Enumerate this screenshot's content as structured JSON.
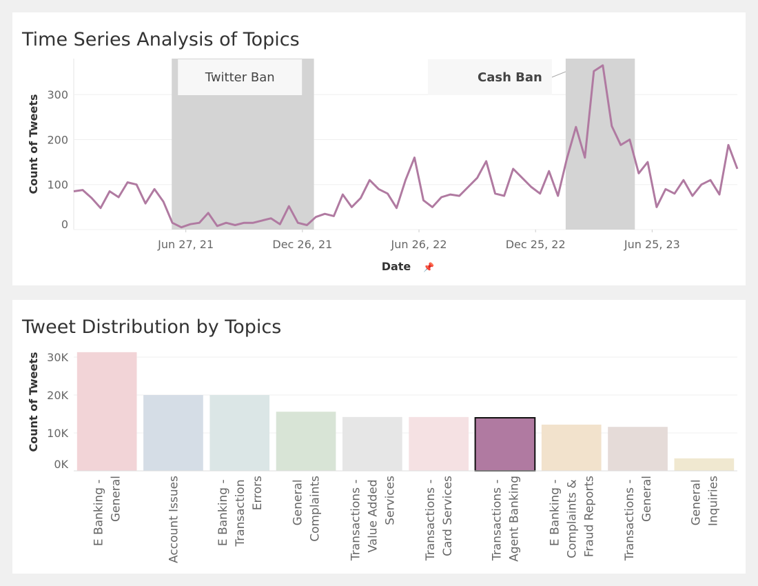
{
  "chart_data": [
    {
      "type": "line",
      "title": "Time Series Analysis of Topics",
      "x_label": "Date",
      "y_label": "Count of Tweets",
      "color": "#b07aa1",
      "grid": true,
      "x": [
        "2021-01-03",
        "2021-01-17",
        "2021-01-31",
        "2021-02-14",
        "2021-02-28",
        "2021-03-14",
        "2021-03-28",
        "2021-04-11",
        "2021-04-25",
        "2021-05-09",
        "2021-05-23",
        "2021-06-06",
        "2021-06-20",
        "2021-07-04",
        "2021-07-18",
        "2021-08-01",
        "2021-08-15",
        "2021-08-29",
        "2021-09-12",
        "2021-09-26",
        "2021-10-10",
        "2021-10-24",
        "2021-11-07",
        "2021-11-21",
        "2021-12-05",
        "2021-12-19",
        "2022-01-02",
        "2022-01-16",
        "2022-01-30",
        "2022-02-13",
        "2022-02-27",
        "2022-03-13",
        "2022-03-27",
        "2022-04-10",
        "2022-04-24",
        "2022-05-08",
        "2022-05-22",
        "2022-06-05",
        "2022-06-19",
        "2022-07-03",
        "2022-07-17",
        "2022-07-31",
        "2022-08-14",
        "2022-08-28",
        "2022-09-11",
        "2022-09-25",
        "2022-10-09",
        "2022-10-23",
        "2022-11-06",
        "2022-11-20",
        "2022-12-04",
        "2022-12-18",
        "2023-01-01",
        "2023-01-15",
        "2023-01-29",
        "2023-02-12",
        "2023-02-26",
        "2023-03-12",
        "2023-03-26",
        "2023-04-09",
        "2023-04-23",
        "2023-05-07",
        "2023-05-21",
        "2023-06-04",
        "2023-06-18",
        "2023-07-02",
        "2023-07-16",
        "2023-07-30",
        "2023-08-13",
        "2023-08-27",
        "2023-09-10",
        "2023-09-24",
        "2023-10-08",
        "2023-10-22",
        "2023-11-05"
      ],
      "values": [
        85,
        88,
        70,
        48,
        85,
        72,
        105,
        100,
        58,
        90,
        62,
        15,
        5,
        12,
        15,
        37,
        8,
        15,
        10,
        15,
        15,
        20,
        25,
        12,
        52,
        15,
        10,
        28,
        35,
        30,
        78,
        50,
        70,
        110,
        90,
        80,
        48,
        110,
        160,
        65,
        50,
        72,
        78,
        75,
        95,
        115,
        152,
        80,
        75,
        135,
        115,
        95,
        80,
        130,
        75,
        158,
        228,
        160,
        352,
        365,
        230,
        188,
        200,
        125,
        150,
        50,
        90,
        80,
        110,
        75,
        100,
        110,
        78,
        188,
        135
      ],
      "xlim": [
        "2021-01-03",
        "2023-11-05"
      ],
      "xticks": [
        {
          "value": "2021-06-27",
          "label": "Jun 27, 21"
        },
        {
          "value": "2021-12-26",
          "label": "Dec 26, 21"
        },
        {
          "value": "2022-06-26",
          "label": "Jun 26, 22"
        },
        {
          "value": "2022-12-25",
          "label": "Dec 25, 22"
        },
        {
          "value": "2023-06-25",
          "label": "Jun 25, 23"
        }
      ],
      "ylim": [
        0,
        380
      ],
      "yticks": [
        0,
        100,
        200,
        300
      ],
      "annotations": [
        {
          "label": "Twitter Ban",
          "start": "2021-06-05",
          "end": "2022-01-13",
          "bold": false
        },
        {
          "label": "Cash Ban",
          "start": "2023-02-10",
          "end": "2023-05-29",
          "bold": true
        }
      ]
    },
    {
      "type": "bar",
      "title": "Tweet Distribution by Topics",
      "y_label": "Count of Tweets",
      "grid": true,
      "categories": [
        "E Banking - General",
        "Account Issues",
        "E Banking - Transaction Errors",
        "General Complaints",
        "Transactions - Value Added Services",
        "Transactions - Card Services",
        "Transactions - Agent Banking",
        "E Banking - Complaints & Fraud Reports",
        "Transactions - General",
        "General Inquiries"
      ],
      "values": [
        31300,
        20000,
        20000,
        15600,
        14200,
        14200,
        14000,
        12200,
        11600,
        3300
      ],
      "colors": [
        "#f2d4d7",
        "#d5dde6",
        "#dbe6e6",
        "#d8e4d6",
        "#e6e6e6",
        "#f5e1e3",
        "#b07aa1",
        "#f2e2cc",
        "#e5dbd8",
        "#f0e8d0"
      ],
      "highlight": 6,
      "ylim": [
        0,
        32000
      ],
      "yticks": [
        {
          "value": 0,
          "label": "0K"
        },
        {
          "value": 10000,
          "label": "10K"
        },
        {
          "value": 20000,
          "label": "20K"
        },
        {
          "value": 30000,
          "label": "30K"
        }
      ]
    }
  ]
}
